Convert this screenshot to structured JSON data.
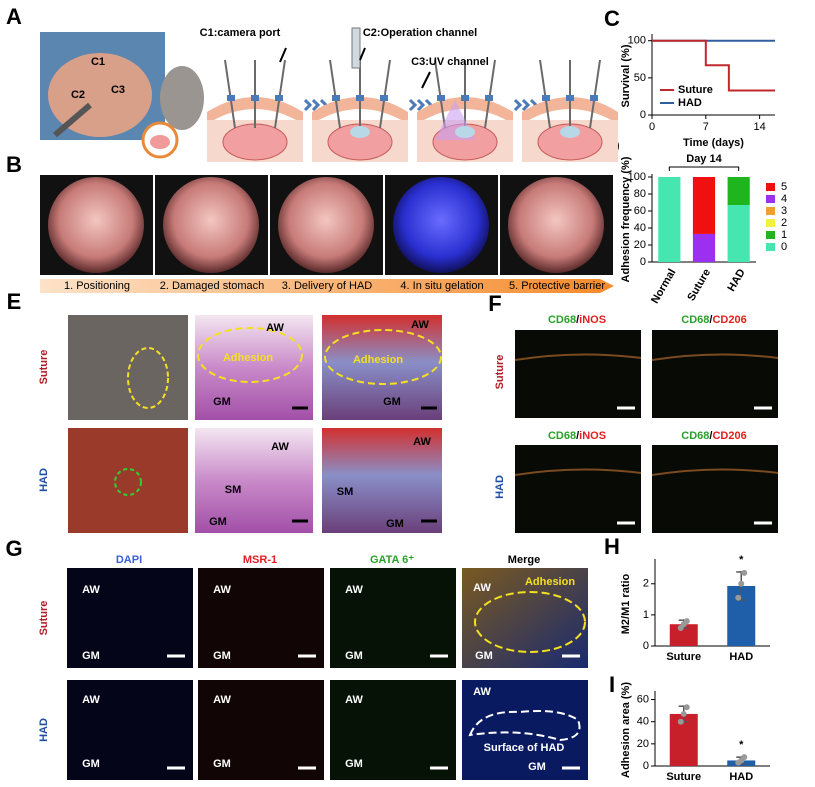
{
  "figure": {
    "panel_letters": [
      "A",
      "B",
      "C",
      "D",
      "E",
      "F",
      "G",
      "H",
      "I"
    ],
    "a": {
      "channels": [
        "C1:camera port",
        "C2:Operation channel",
        "C3:UV channel"
      ],
      "photo_labels": [
        "C1",
        "C2",
        "C3"
      ]
    },
    "b": {
      "steps": [
        "1. Positioning",
        "2. Damaged stomach",
        "3.  Delivery of HAD",
        "4.  In situ gelation",
        "5. Protective barrier"
      ]
    },
    "e": {
      "rows": [
        "Suture",
        "HAD"
      ],
      "annotations": [
        "AW",
        "Adhesion",
        "GM",
        "AW",
        "Adhesion",
        "GM",
        "AW",
        "SM",
        "GM",
        "AW",
        "SM",
        "GM"
      ]
    },
    "f": {
      "rows": [
        "Suture",
        "HAD"
      ],
      "headers": [
        {
          "green": "CD68",
          "sep": "/",
          "red": "iNOS"
        },
        {
          "green": "CD68",
          "sep": "/",
          "red": "CD206"
        },
        {
          "green": "CD68",
          "sep": "/",
          "red": "iNOS"
        },
        {
          "green": "CD68",
          "sep": "/",
          "red": "CD206"
        }
      ]
    },
    "g": {
      "rows": [
        "Suture",
        "HAD"
      ],
      "headers": [
        "DAPI",
        "MSR-1",
        "GATA 6⁺",
        "Merge"
      ],
      "annotations": [
        "AW",
        "GM",
        "AW",
        "GM",
        "AW",
        "GM",
        "AW",
        "Adhesion",
        "GM",
        "AW",
        "GM",
        "AW",
        "GM",
        "AW",
        "GM",
        "AW",
        "Surface of HAD",
        "GM"
      ]
    }
  },
  "chart_data": [
    {
      "type": "line",
      "ylabel": "Survival (%)",
      "xlabel": "Time (days)",
      "xlim": [
        0,
        16
      ],
      "xticks": [
        0,
        7,
        14
      ],
      "ylim": [
        0,
        105
      ],
      "yticks": [
        0,
        50,
        100
      ],
      "legend": "center left",
      "series": [
        {
          "name": "Suture",
          "color": "#c0282e",
          "x": [
            0,
            7,
            7,
            10,
            10,
            16
          ],
          "values": [
            100,
            100,
            67,
            67,
            33,
            33
          ]
        },
        {
          "name": "HAD",
          "color": "#2f5f9e",
          "x": [
            0,
            16
          ],
          "values": [
            100,
            100
          ]
        }
      ]
    },
    {
      "type": "stacked_bar",
      "ylabel": "Adhesion frequency (%)",
      "annotation": "Day 14",
      "categories": [
        "Normal",
        "Suture",
        "HAD"
      ],
      "ylim": [
        0,
        100
      ],
      "yticks": [
        0,
        20,
        40,
        60,
        80,
        100
      ],
      "legend": "right",
      "series": [
        {
          "name": "0",
          "color": "#45e6b0",
          "values": [
            100,
            0,
            67
          ]
        },
        {
          "name": "1",
          "color": "#1fb51f",
          "values": [
            0,
            0,
            33
          ]
        },
        {
          "name": "2",
          "color": "#f2f23a",
          "values": [
            0,
            0,
            0
          ]
        },
        {
          "name": "3",
          "color": "#f0a030",
          "values": [
            0,
            0,
            0
          ]
        },
        {
          "name": "4",
          "color": "#9b30f0",
          "values": [
            0,
            33,
            0
          ]
        },
        {
          "name": "5",
          "color": "#f01010",
          "values": [
            0,
            67,
            0
          ]
        }
      ]
    },
    {
      "type": "bar",
      "ylabel": "M2/M1 ratio",
      "categories": [
        "Suture",
        "HAD"
      ],
      "values": [
        0.7,
        1.93
      ],
      "errors": [
        0.13,
        0.45
      ],
      "points": [
        [
          0.58,
          0.7,
          0.8
        ],
        [
          1.55,
          2.0,
          2.35
        ]
      ],
      "colors": [
        "#c8202a",
        "#1f5ea8"
      ],
      "significance": [
        null,
        "*"
      ],
      "ylim": [
        0,
        2.7
      ],
      "yticks": [
        0,
        1,
        2
      ]
    },
    {
      "type": "bar",
      "ylabel": "Adhesion area (%)",
      "categories": [
        "Suture",
        "HAD"
      ],
      "values": [
        47,
        5
      ],
      "errors": [
        7,
        3
      ],
      "points": [
        [
          40,
          47,
          53
        ],
        [
          3,
          5,
          8
        ]
      ],
      "colors": [
        "#c8202a",
        "#1f5ea8"
      ],
      "significance": [
        null,
        "*"
      ],
      "ylim": [
        0,
        65
      ],
      "yticks": [
        0,
        20,
        40,
        60
      ]
    }
  ]
}
